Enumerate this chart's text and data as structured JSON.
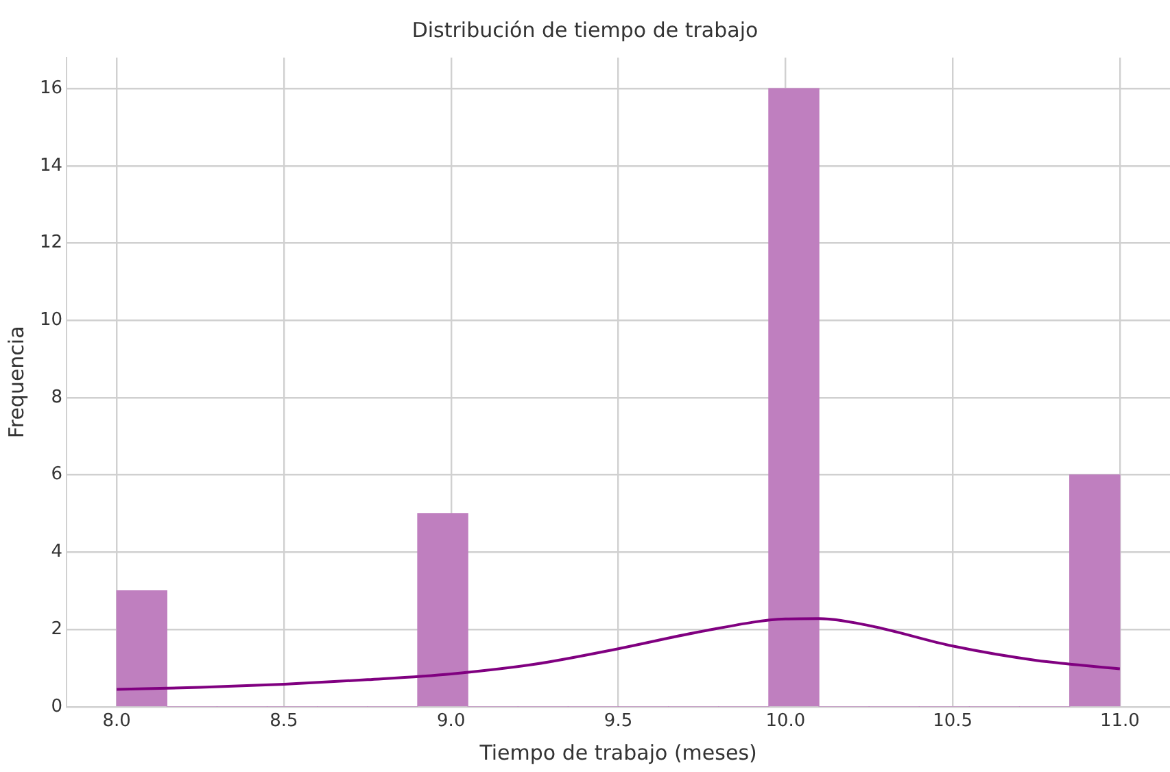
{
  "chart_data": {
    "type": "histogram",
    "title": "Distribución de tiempo de trabajo",
    "xlabel": "Tiempo de trabajo (meses)",
    "ylabel": "Frequencia",
    "bins": [
      8.0,
      8.15,
      8.3,
      8.45,
      8.6,
      8.75,
      8.9,
      9.05,
      9.2,
      9.35,
      9.5,
      9.65,
      9.8,
      9.95,
      10.1,
      10.25,
      10.4,
      10.55,
      10.7,
      10.85,
      11.0
    ],
    "values": [
      3,
      0,
      0,
      0,
      0,
      0,
      5,
      0,
      0,
      0,
      0,
      0,
      0,
      16,
      0,
      0,
      0,
      0,
      0,
      6
    ],
    "color": "#bf7fbf",
    "series": [
      {
        "type": "line",
        "color": "#800080",
        "x": [
          8.0,
          8.25,
          8.5,
          8.75,
          9.0,
          9.25,
          9.5,
          9.75,
          10.0,
          10.1,
          10.25,
          10.5,
          10.75,
          11.0
        ],
        "values": [
          0.45,
          0.5,
          0.58,
          0.7,
          0.85,
          1.1,
          1.5,
          1.95,
          2.27,
          2.28,
          2.1,
          1.57,
          1.2,
          0.98
        ]
      }
    ],
    "xlim": [
      7.85,
      11.15
    ],
    "xticks": [
      {
        "value": 8,
        "label": "8.0"
      },
      {
        "value": 8.5,
        "label": "8.5"
      },
      {
        "value": 9,
        "label": "9.0"
      },
      {
        "value": 9.5,
        "label": "9.5"
      },
      {
        "value": 10,
        "label": "10.0"
      },
      {
        "value": 10.5,
        "label": "10.5"
      },
      {
        "value": 11,
        "label": "11.0"
      }
    ],
    "ylim": [
      0,
      16.8
    ],
    "yticks": [
      0,
      2,
      4,
      6,
      8,
      10,
      12,
      14,
      16
    ],
    "grid": true,
    "legend": false
  }
}
